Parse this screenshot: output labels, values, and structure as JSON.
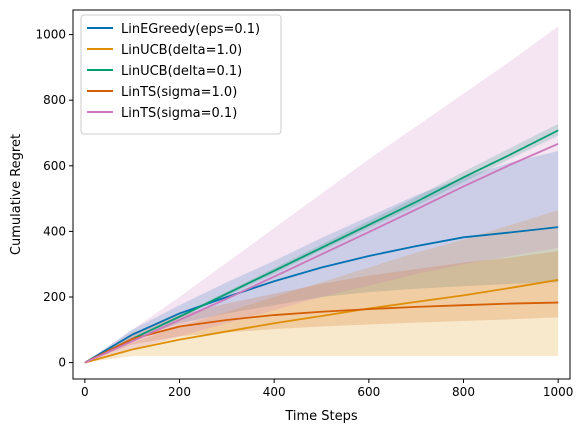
{
  "chart_data": {
    "type": "line",
    "xlabel": "Time Steps",
    "ylabel": "Cumulative Regret",
    "xlim": [
      -25,
      1025
    ],
    "ylim": [
      -50,
      1075
    ],
    "xticks": [
      0,
      200,
      400,
      600,
      800,
      1000
    ],
    "yticks": [
      0,
      200,
      400,
      600,
      800,
      1000
    ],
    "grid": false,
    "legend_position": "top-left",
    "x": [
      0,
      100,
      200,
      300,
      400,
      500,
      600,
      700,
      800,
      900,
      1000
    ],
    "series": [
      {
        "name": "LinEGreedy(eps=0.1)",
        "color": "#0072b2",
        "values": [
          0,
          85,
          150,
          200,
          248,
          290,
          325,
          355,
          382,
          397,
          413
        ],
        "lower": [
          0,
          70,
          120,
          150,
          175,
          200,
          215,
          225,
          233,
          240,
          245
        ],
        "upper": [
          0,
          100,
          175,
          245,
          310,
          380,
          445,
          510,
          565,
          610,
          645
        ]
      },
      {
        "name": "LinUCB(delta=1.0)",
        "color": "#de8f05",
        "values": [
          0,
          40,
          70,
          95,
          120,
          142,
          165,
          185,
          205,
          228,
          252
        ],
        "lower": [
          0,
          20,
          20,
          20,
          20,
          20,
          20,
          20,
          20,
          20,
          20
        ],
        "upper": [
          0,
          60,
          110,
          155,
          200,
          245,
          290,
          335,
          375,
          420,
          465
        ]
      },
      {
        "name": "LinUCB(delta=0.1)",
        "color": "#029e73",
        "values": [
          0,
          72,
          140,
          210,
          280,
          350,
          420,
          490,
          565,
          635,
          708
        ],
        "lower": [
          0,
          70,
          136,
          204,
          272,
          342,
          410,
          478,
          550,
          622,
          692
        ],
        "upper": [
          0,
          75,
          145,
          216,
          288,
          360,
          432,
          505,
          582,
          655,
          728
        ]
      },
      {
        "name": "LinTS(sigma=1.0)",
        "color": "#d55e00",
        "values": [
          0,
          72,
          110,
          130,
          145,
          155,
          163,
          170,
          175,
          180,
          183
        ],
        "lower": [
          0,
          55,
          80,
          92,
          102,
          110,
          116,
          122,
          127,
          132,
          138
        ],
        "upper": [
          0,
          90,
          145,
          180,
          210,
          240,
          265,
          285,
          305,
          320,
          340
        ]
      },
      {
        "name": "LinTS(sigma=0.1)",
        "color": "#cc78bc",
        "values": [
          0,
          65,
          130,
          195,
          262,
          330,
          398,
          467,
          537,
          604,
          667
        ],
        "lower": [
          0,
          40,
          80,
          120,
          160,
          200,
          235,
          270,
          300,
          325,
          350
        ],
        "upper": [
          0,
          100,
          200,
          305,
          410,
          515,
          620,
          720,
          820,
          920,
          1025
        ]
      }
    ]
  }
}
